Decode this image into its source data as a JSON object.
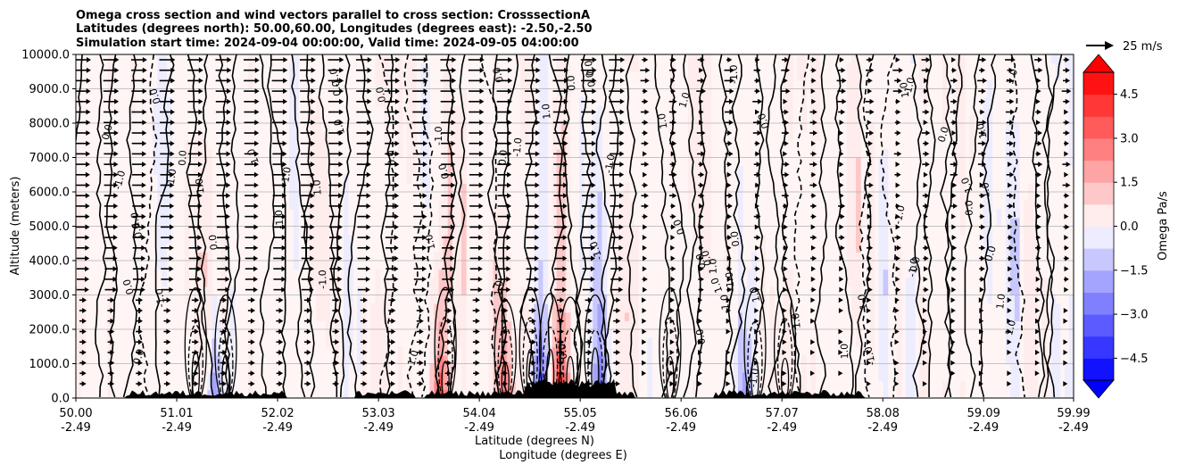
{
  "chart_data": {
    "type": "contour",
    "title_lines": [
      "Omega cross section and wind vectors parallel to cross section: CrosssectionA",
      "Latitudes (degrees north): 50.00,60.00, Longitudes (degrees east): -2.50,-2.50",
      "Simulation start time: 2024-09-04 00:00:00, Valid time: 2024-09-05 04:00:00"
    ],
    "ylabel": "Altitude (meters)",
    "xlabel_lat": "Latitude (degrees N)",
    "xlabel_lon": "Longitude (degrees E)",
    "ylim": [
      0,
      10000
    ],
    "y_ticks": [
      "0.0",
      "1000.0",
      "2000.0",
      "3000.0",
      "4000.0",
      "5000.0",
      "6000.0",
      "7000.0",
      "8000.0",
      "9000.0",
      "10000.0"
    ],
    "y_tick_values": [
      0,
      1000,
      2000,
      3000,
      4000,
      5000,
      6000,
      7000,
      8000,
      9000,
      10000
    ],
    "xlim": [
      50.0,
      59.99
    ],
    "x_tick_lats": [
      "50.00",
      "51.01",
      "52.02",
      "53.03",
      "54.04",
      "55.05",
      "56.06",
      "57.07",
      "58.08",
      "59.09",
      "59.99"
    ],
    "x_tick_values": [
      50.0,
      51.01,
      52.02,
      53.03,
      54.04,
      55.05,
      56.06,
      57.07,
      58.08,
      59.09,
      59.99
    ],
    "x_tick_lon": "-2.49",
    "quiver_key_label": "25 m/s",
    "colorbar": {
      "label": "Omega Pa/s",
      "range": [
        -5.25,
        5.25
      ],
      "ticks": [
        "4.5",
        "3.0",
        "1.5",
        "0.0",
        "−1.5",
        "−3.0",
        "−4.5"
      ],
      "tick_values": [
        4.5,
        3.0,
        1.5,
        0.0,
        -1.5,
        -3.0,
        -4.5
      ],
      "extend": "both"
    },
    "contour_labels": [
      "0.0",
      "1.0",
      "-1.0"
    ],
    "colors": {
      "positive": "#ff0000",
      "negative": "#0000ff",
      "neutral": "#ffffff",
      "terrain": "#000000",
      "grid": "#b0b0b0"
    }
  }
}
